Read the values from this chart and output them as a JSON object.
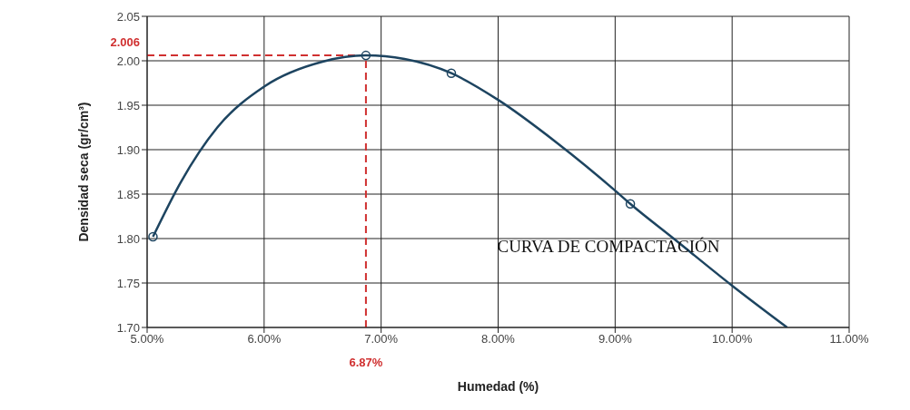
{
  "chart_data": {
    "type": "line",
    "xlabel": "Humedad (%)",
    "ylabel": "Densidad seca (gr/cm³)",
    "xlim": [
      5.0,
      11.0
    ],
    "ylim": [
      1.7,
      2.05
    ],
    "xticks": [
      {
        "value": 5,
        "label": "5.00%"
      },
      {
        "value": 6,
        "label": "6.00%"
      },
      {
        "value": 7,
        "label": "7.00%"
      },
      {
        "value": 8,
        "label": "8.00%"
      },
      {
        "value": 9,
        "label": "9.00%"
      },
      {
        "value": 10,
        "label": "10.00%"
      },
      {
        "value": 11,
        "label": "11.00%"
      }
    ],
    "yticks": [
      {
        "value": 1.7,
        "label": "1.70"
      },
      {
        "value": 1.75,
        "label": "1.75"
      },
      {
        "value": 1.8,
        "label": "1.80"
      },
      {
        "value": 1.85,
        "label": "1.85"
      },
      {
        "value": 1.9,
        "label": "1.90"
      },
      {
        "value": 1.95,
        "label": "1.95"
      },
      {
        "value": 2.0,
        "label": "2.00"
      },
      {
        "value": 2.05,
        "label": "2.05"
      }
    ],
    "grid": true,
    "series": [
      {
        "color": "#1d4460",
        "marker": "none",
        "x": [
          5.05,
          5.29,
          5.6,
          6.0,
          6.5,
          6.87,
          7.2,
          7.6,
          8.0,
          8.5,
          9.0,
          9.13,
          9.5,
          10.0,
          10.47
        ],
        "values": [
          1.802,
          1.864,
          1.925,
          1.971,
          1.999,
          2.006,
          2.002,
          1.986,
          1.956,
          1.908,
          1.854,
          1.839,
          1.8,
          1.747,
          1.7
        ]
      },
      {
        "type": "scatter",
        "color": "#1d4460",
        "marker": "circle",
        "x": [
          5.05,
          6.87,
          7.6,
          9.13
        ],
        "values": [
          1.802,
          2.006,
          1.986,
          1.839
        ]
      }
    ],
    "ref_lines": [
      {
        "axis": "x",
        "value": 6.87,
        "label": "6.87%",
        "color": "#d03030",
        "line_style": "dashed"
      },
      {
        "axis": "y",
        "value": 2.006,
        "label": "2.006",
        "color": "#d03030",
        "line_style": "dashed"
      }
    ],
    "annotations": [
      "CURVA DE COMPACTACIÓN"
    ]
  }
}
